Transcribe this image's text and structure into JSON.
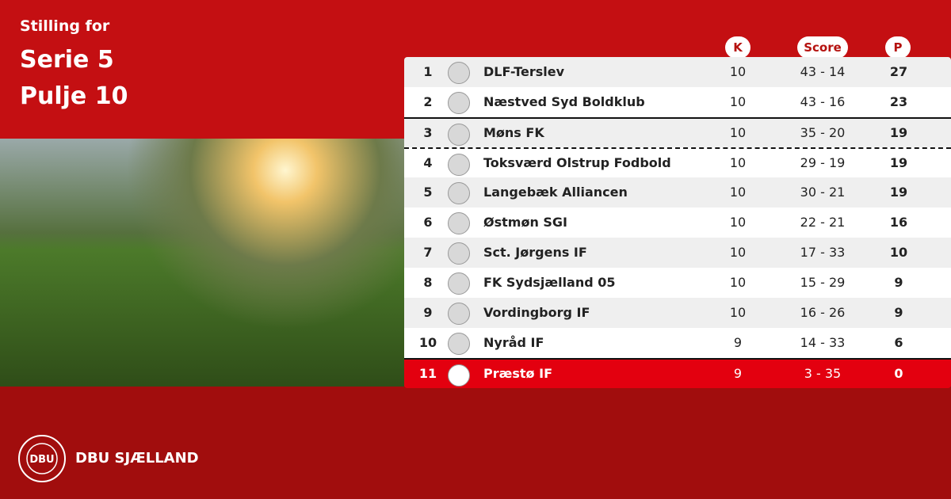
{
  "header": {
    "label": "Stilling for",
    "title": "Serie 5",
    "subtitle": "Pulje 10"
  },
  "table": {
    "columns": [
      "K",
      "Score",
      "P"
    ],
    "rows": [
      [
        1,
        "DLF-Terslev",
        10,
        "43 - 14",
        27
      ],
      [
        2,
        "Næstved Syd Boldklub",
        10,
        "43 - 16",
        23
      ],
      [
        3,
        "Møns FK",
        10,
        "35 - 20",
        19
      ],
      [
        4,
        "Toksværd Olstrup Fodbold",
        10,
        "29 - 19",
        19
      ],
      [
        5,
        "Langebæk Alliancen",
        10,
        "30 - 21",
        19
      ],
      [
        6,
        "Østmøn SGI",
        10,
        "22 - 21",
        16
      ],
      [
        7,
        "Sct. Jørgens IF",
        10,
        "17 - 33",
        10
      ],
      [
        8,
        "FK Sydsjælland 05",
        10,
        "15 - 29",
        9
      ],
      [
        9,
        "Vordingborg IF",
        10,
        "16 - 26",
        9
      ],
      [
        10,
        "Nyråd IF",
        9,
        "14 - 33",
        6
      ],
      [
        11,
        "Præstø IF",
        9,
        "3 - 35",
        0
      ]
    ]
  },
  "footer": {
    "logo_text": "DBU",
    "brand": "DBU SJÆLLAND"
  }
}
